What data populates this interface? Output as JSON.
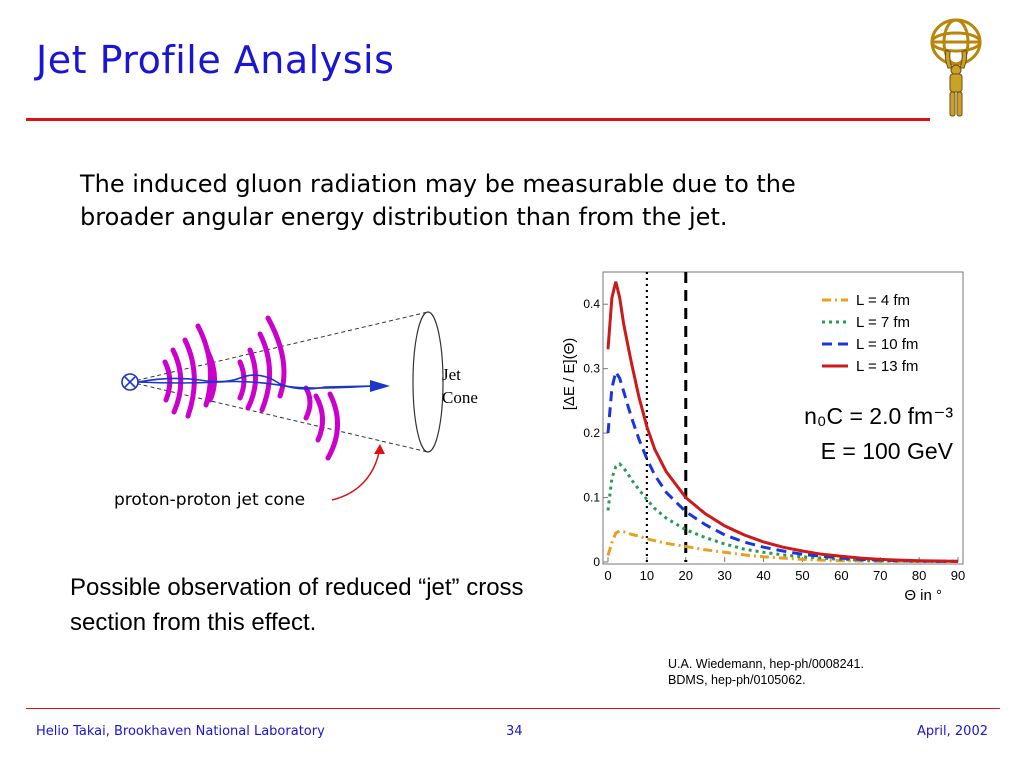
{
  "slide": {
    "title": "Jet Profile Analysis",
    "intro_text": "The induced gluon radiation may be measurable due to the broader angular energy distribution than from the jet.",
    "possible_text": "Possible observation of reduced “jet” cross section from this effect.",
    "references": [
      "U.A. Wiedemann, hep-ph/0008241.",
      "BDMS, hep-ph/0105062."
    ]
  },
  "diagram": {
    "cone_label_lines": [
      "Jet",
      "Cone"
    ],
    "caption": "proton-proton jet cone",
    "colors": {
      "arcs": "#cc00cc",
      "jet": "#1a35c8",
      "arrow": "#dd1111"
    }
  },
  "footer": {
    "left": "Helio Takai, Brookhaven National Laboratory",
    "center": "34",
    "right": "April, 2002"
  },
  "colors": {
    "title": "#1a14d6",
    "rule": "#dd1111"
  },
  "chart_data": {
    "type": "line",
    "ylabel": "[ΔE / E](Θ)",
    "xlabel": "Θ  in  °",
    "xlim": [
      0,
      90
    ],
    "ylim": [
      0,
      0.45
    ],
    "xticks": [
      0,
      10,
      20,
      30,
      40,
      50,
      60,
      70,
      80,
      90
    ],
    "yticks": [
      0,
      0.1,
      0.2,
      0.3,
      0.4
    ],
    "grid": false,
    "legend_position": "top-right",
    "vlines": [
      {
        "x": 10,
        "style": "dotted"
      },
      {
        "x": 20,
        "style": "dashed"
      }
    ],
    "annotations": [
      "n₀C = 2.0 fm⁻³",
      "E = 100 GeV"
    ],
    "x": [
      0,
      1,
      2,
      3,
      4,
      5,
      6,
      8,
      10,
      12,
      15,
      20,
      25,
      30,
      35,
      40,
      45,
      50,
      55,
      60,
      65,
      70,
      75,
      80,
      85,
      90
    ],
    "series": [
      {
        "name": "L = 4 fm",
        "color": "#e8a020",
        "dash": "dashdot",
        "values": [
          0.01,
          0.03,
          0.045,
          0.048,
          0.047,
          0.045,
          0.043,
          0.04,
          0.036,
          0.033,
          0.029,
          0.024,
          0.019,
          0.015,
          0.011,
          0.008,
          0.006,
          0.004,
          0.003,
          0.002,
          0.0015,
          0.001,
          0.001,
          0.001,
          0.001,
          0.001
        ]
      },
      {
        "name": "L = 7 fm",
        "color": "#2a9a5a",
        "dash": "dotted",
        "values": [
          0.08,
          0.13,
          0.148,
          0.152,
          0.146,
          0.138,
          0.128,
          0.112,
          0.097,
          0.083,
          0.068,
          0.05,
          0.038,
          0.028,
          0.02,
          0.015,
          0.011,
          0.008,
          0.006,
          0.004,
          0.003,
          0.002,
          0.0015,
          0.001,
          0.001,
          0.001
        ]
      },
      {
        "name": "L = 10 fm",
        "color": "#1a35e0",
        "dash": "dashed",
        "values": [
          0.2,
          0.27,
          0.295,
          0.285,
          0.265,
          0.245,
          0.225,
          0.19,
          0.16,
          0.135,
          0.108,
          0.078,
          0.058,
          0.042,
          0.031,
          0.023,
          0.017,
          0.012,
          0.009,
          0.006,
          0.004,
          0.003,
          0.002,
          0.0015,
          0.001,
          0.001
        ]
      },
      {
        "name": "L = 13 fm",
        "color": "#cc1a1a",
        "dash": "solid",
        "values": [
          0.33,
          0.41,
          0.435,
          0.41,
          0.37,
          0.34,
          0.31,
          0.255,
          0.21,
          0.175,
          0.14,
          0.1,
          0.075,
          0.056,
          0.042,
          0.031,
          0.023,
          0.017,
          0.012,
          0.009,
          0.006,
          0.004,
          0.003,
          0.002,
          0.0015,
          0.001
        ]
      }
    ]
  }
}
